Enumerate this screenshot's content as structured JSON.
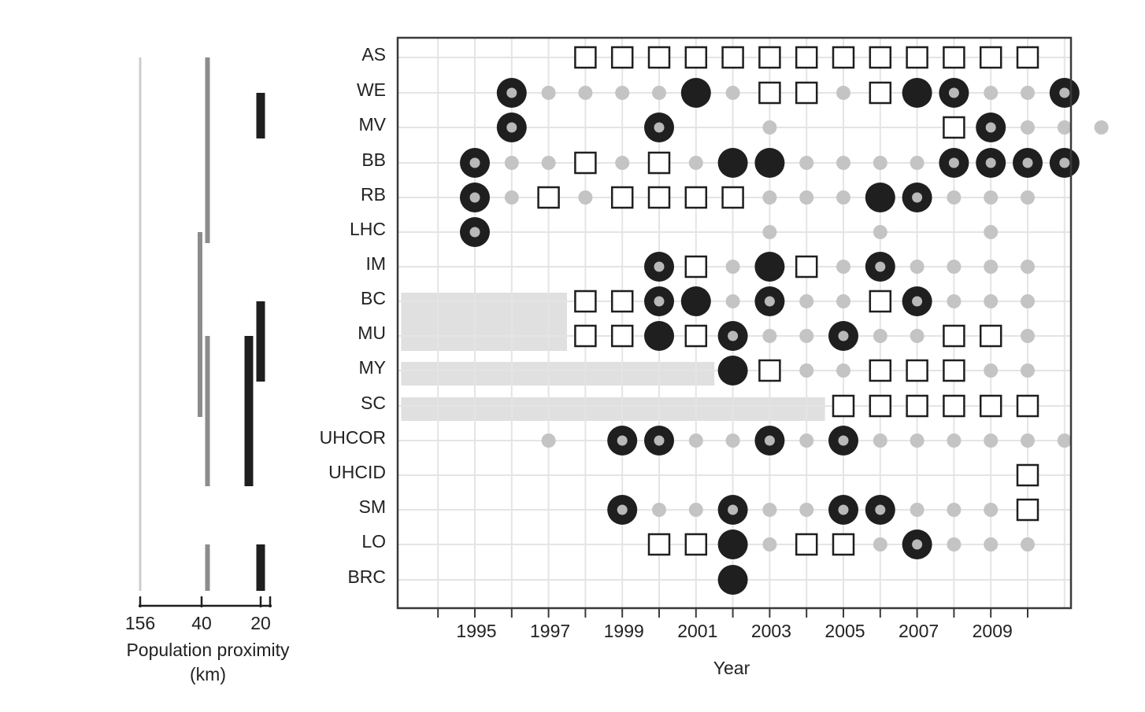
{
  "chart_data": {
    "type": "scatter",
    "title": "",
    "xlabel": "Year",
    "ylabel": "",
    "x_tick_labels": [
      "1995",
      "1997",
      "1999",
      "2001",
      "2003",
      "2005",
      "2007",
      "2009"
    ],
    "x_tick_values": [
      1995,
      1997,
      1999,
      2001,
      2003,
      2005,
      2007,
      2009
    ],
    "xlim": [
      1993,
      2011
    ],
    "grid": true,
    "rows": [
      "AS",
      "WE",
      "MV",
      "BB",
      "RB",
      "LHC",
      "IM",
      "BC",
      "MU",
      "MY",
      "SC",
      "UHCOR",
      "UHCID",
      "SM",
      "LO",
      "BRC"
    ],
    "legend": {
      "S": "open square",
      "F": "filled circle",
      "R": "ringed circle",
      "g": "small grey dot"
    },
    "series": [
      {
        "name": "AS",
        "start": 1998,
        "values": "SSSSSSSSSSSSS"
      },
      {
        "name": "WE",
        "start": 1996,
        "values": "RggggFgSSgSFRggR"
      },
      {
        "name": "MV",
        "start": 1996,
        "values": "R...R..g....SRggg"
      },
      {
        "name": "BB",
        "start": 1995,
        "values": "RggSgSgFFggggRRRR"
      },
      {
        "name": "RB",
        "start": 1995,
        "values": "RgSgSSSSgggFRggg"
      },
      {
        "name": "LHC",
        "start": 1995,
        "values": "R.......g..g..g"
      },
      {
        "name": "IM",
        "start": 2000,
        "values": "RSgFSgRgggg"
      },
      {
        "name": "BC",
        "start": 1998,
        "values": "SSRFgRggSRggg"
      },
      {
        "name": "MU",
        "start": 1998,
        "values": "SSFSRggRggSSg"
      },
      {
        "name": "MY",
        "start": 2002,
        "values": "FSggSSSgg"
      },
      {
        "name": "SC",
        "start": 2005,
        "values": "SSSSSS"
      },
      {
        "name": "UHCOR",
        "start": 1997,
        "values": "g.RRggRgRgggggg"
      },
      {
        "name": "UHCID",
        "start": 2010,
        "values": "S"
      },
      {
        "name": "SM",
        "start": 1999,
        "values": "RggRggRRgggS"
      },
      {
        "name": "LO",
        "start": 2000,
        "values": "SSFgSSgRggg"
      },
      {
        "name": "BRC",
        "start": 2002,
        "values": "F"
      }
    ],
    "shaded_regions": [
      {
        "rows": [
          "BC",
          "MU"
        ],
        "x_range": [
          1993,
          1997.5
        ]
      },
      {
        "rows": [
          "MY"
        ],
        "x_range": [
          1993,
          2001.5
        ]
      },
      {
        "rows": [
          "SC"
        ],
        "x_range": [
          1993,
          2004.5
        ]
      }
    ],
    "proximity_panel": {
      "axis_label_line1": "Population proximity",
      "axis_label_line2": "(km)",
      "tick_labels": [
        "156",
        "40",
        "20"
      ],
      "tick_values": [
        156,
        40,
        20
      ],
      "bars": [
        {
          "km": 156,
          "style": "light",
          "from_row": "AS",
          "to_row": "BRC"
        },
        {
          "km": 38,
          "style": "grey",
          "from_row": "AS",
          "to_row": "LHC"
        },
        {
          "km": 43,
          "style": "grey",
          "from_row": "LHC",
          "to_row": "SC"
        },
        {
          "km": 38,
          "style": "grey",
          "from_row": "MU",
          "to_row": "UHCID"
        },
        {
          "km": 38,
          "style": "grey",
          "from_row": "LO",
          "to_row": "BRC"
        },
        {
          "km": 20,
          "style": "black",
          "from_row": "WE",
          "to_row": "MV"
        },
        {
          "km": 20,
          "style": "black",
          "from_row": "BC",
          "to_row": "MY"
        },
        {
          "km": 24,
          "style": "black",
          "from_row": "MU",
          "to_row": "UHCID"
        },
        {
          "km": 20,
          "style": "black",
          "from_row": "LO",
          "to_row": "BRC"
        }
      ]
    },
    "colors": {
      "black": "#1f1f1f",
      "grey_dot": "#c4c4c4",
      "ring_inner": "#b9b9b9",
      "grid": "#e4e4e4",
      "shade": "#e0e0e0",
      "frame": "#3a3a3a",
      "bar_light": "#cdcdcd",
      "bar_grey": "#8c8c8c",
      "bar_black": "#1f1f1f"
    }
  }
}
